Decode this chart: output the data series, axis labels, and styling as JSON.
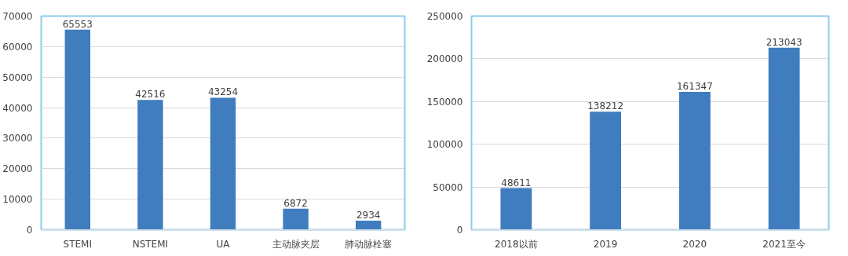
{
  "chart_data": [
    {
      "type": "bar",
      "categories": [
        "STEMI",
        "NSTEMI",
        "UA",
        "主动脉夹层",
        "肺动脉栓塞"
      ],
      "values": [
        65553,
        42516,
        43254,
        6872,
        2934
      ],
      "color": "#3f7dbf",
      "ylim": [
        0,
        70000
      ],
      "yticks": [
        0,
        10000,
        20000,
        30000,
        40000,
        50000,
        60000,
        70000
      ],
      "grid": "y",
      "data_labels": true
    },
    {
      "type": "bar",
      "categories": [
        "2018以前",
        "2019",
        "2020",
        "2021至今"
      ],
      "values": [
        48611,
        138212,
        161347,
        213043
      ],
      "color": "#3f7dbf",
      "ylim": [
        0,
        250000
      ],
      "yticks": [
        0,
        50000,
        100000,
        150000,
        200000,
        250000
      ],
      "grid": "y",
      "data_labels": true
    }
  ]
}
